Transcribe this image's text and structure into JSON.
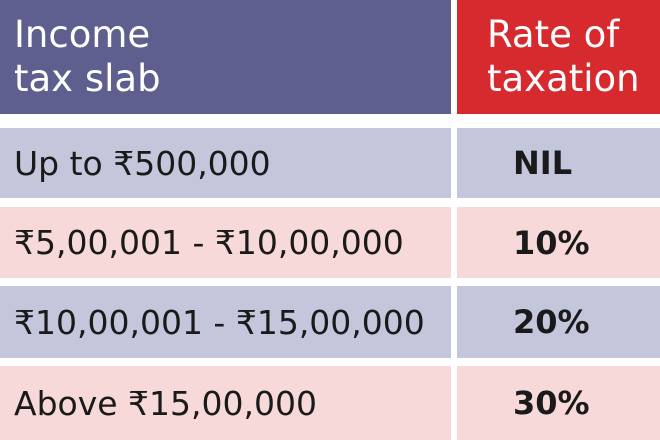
{
  "header": {
    "slab_label": "Income\ntax slab",
    "rate_label": "Rate of\ntaxation"
  },
  "rows": [
    {
      "slab": "Up to ₹500,000",
      "rate": "NIL"
    },
    {
      "slab": "₹5,00,001 - ₹10,00,000",
      "rate": "10%"
    },
    {
      "slab": "₹10,00,001 - ₹15,00,000",
      "rate": "20%"
    },
    {
      "slab": "Above ₹15,00,000",
      "rate": "30%"
    }
  ],
  "colors": {
    "header_left": "#5e5f8f",
    "header_right": "#d62a2e",
    "row_lavender": "#c4c6dc",
    "row_pink": "#f7d9d9"
  }
}
